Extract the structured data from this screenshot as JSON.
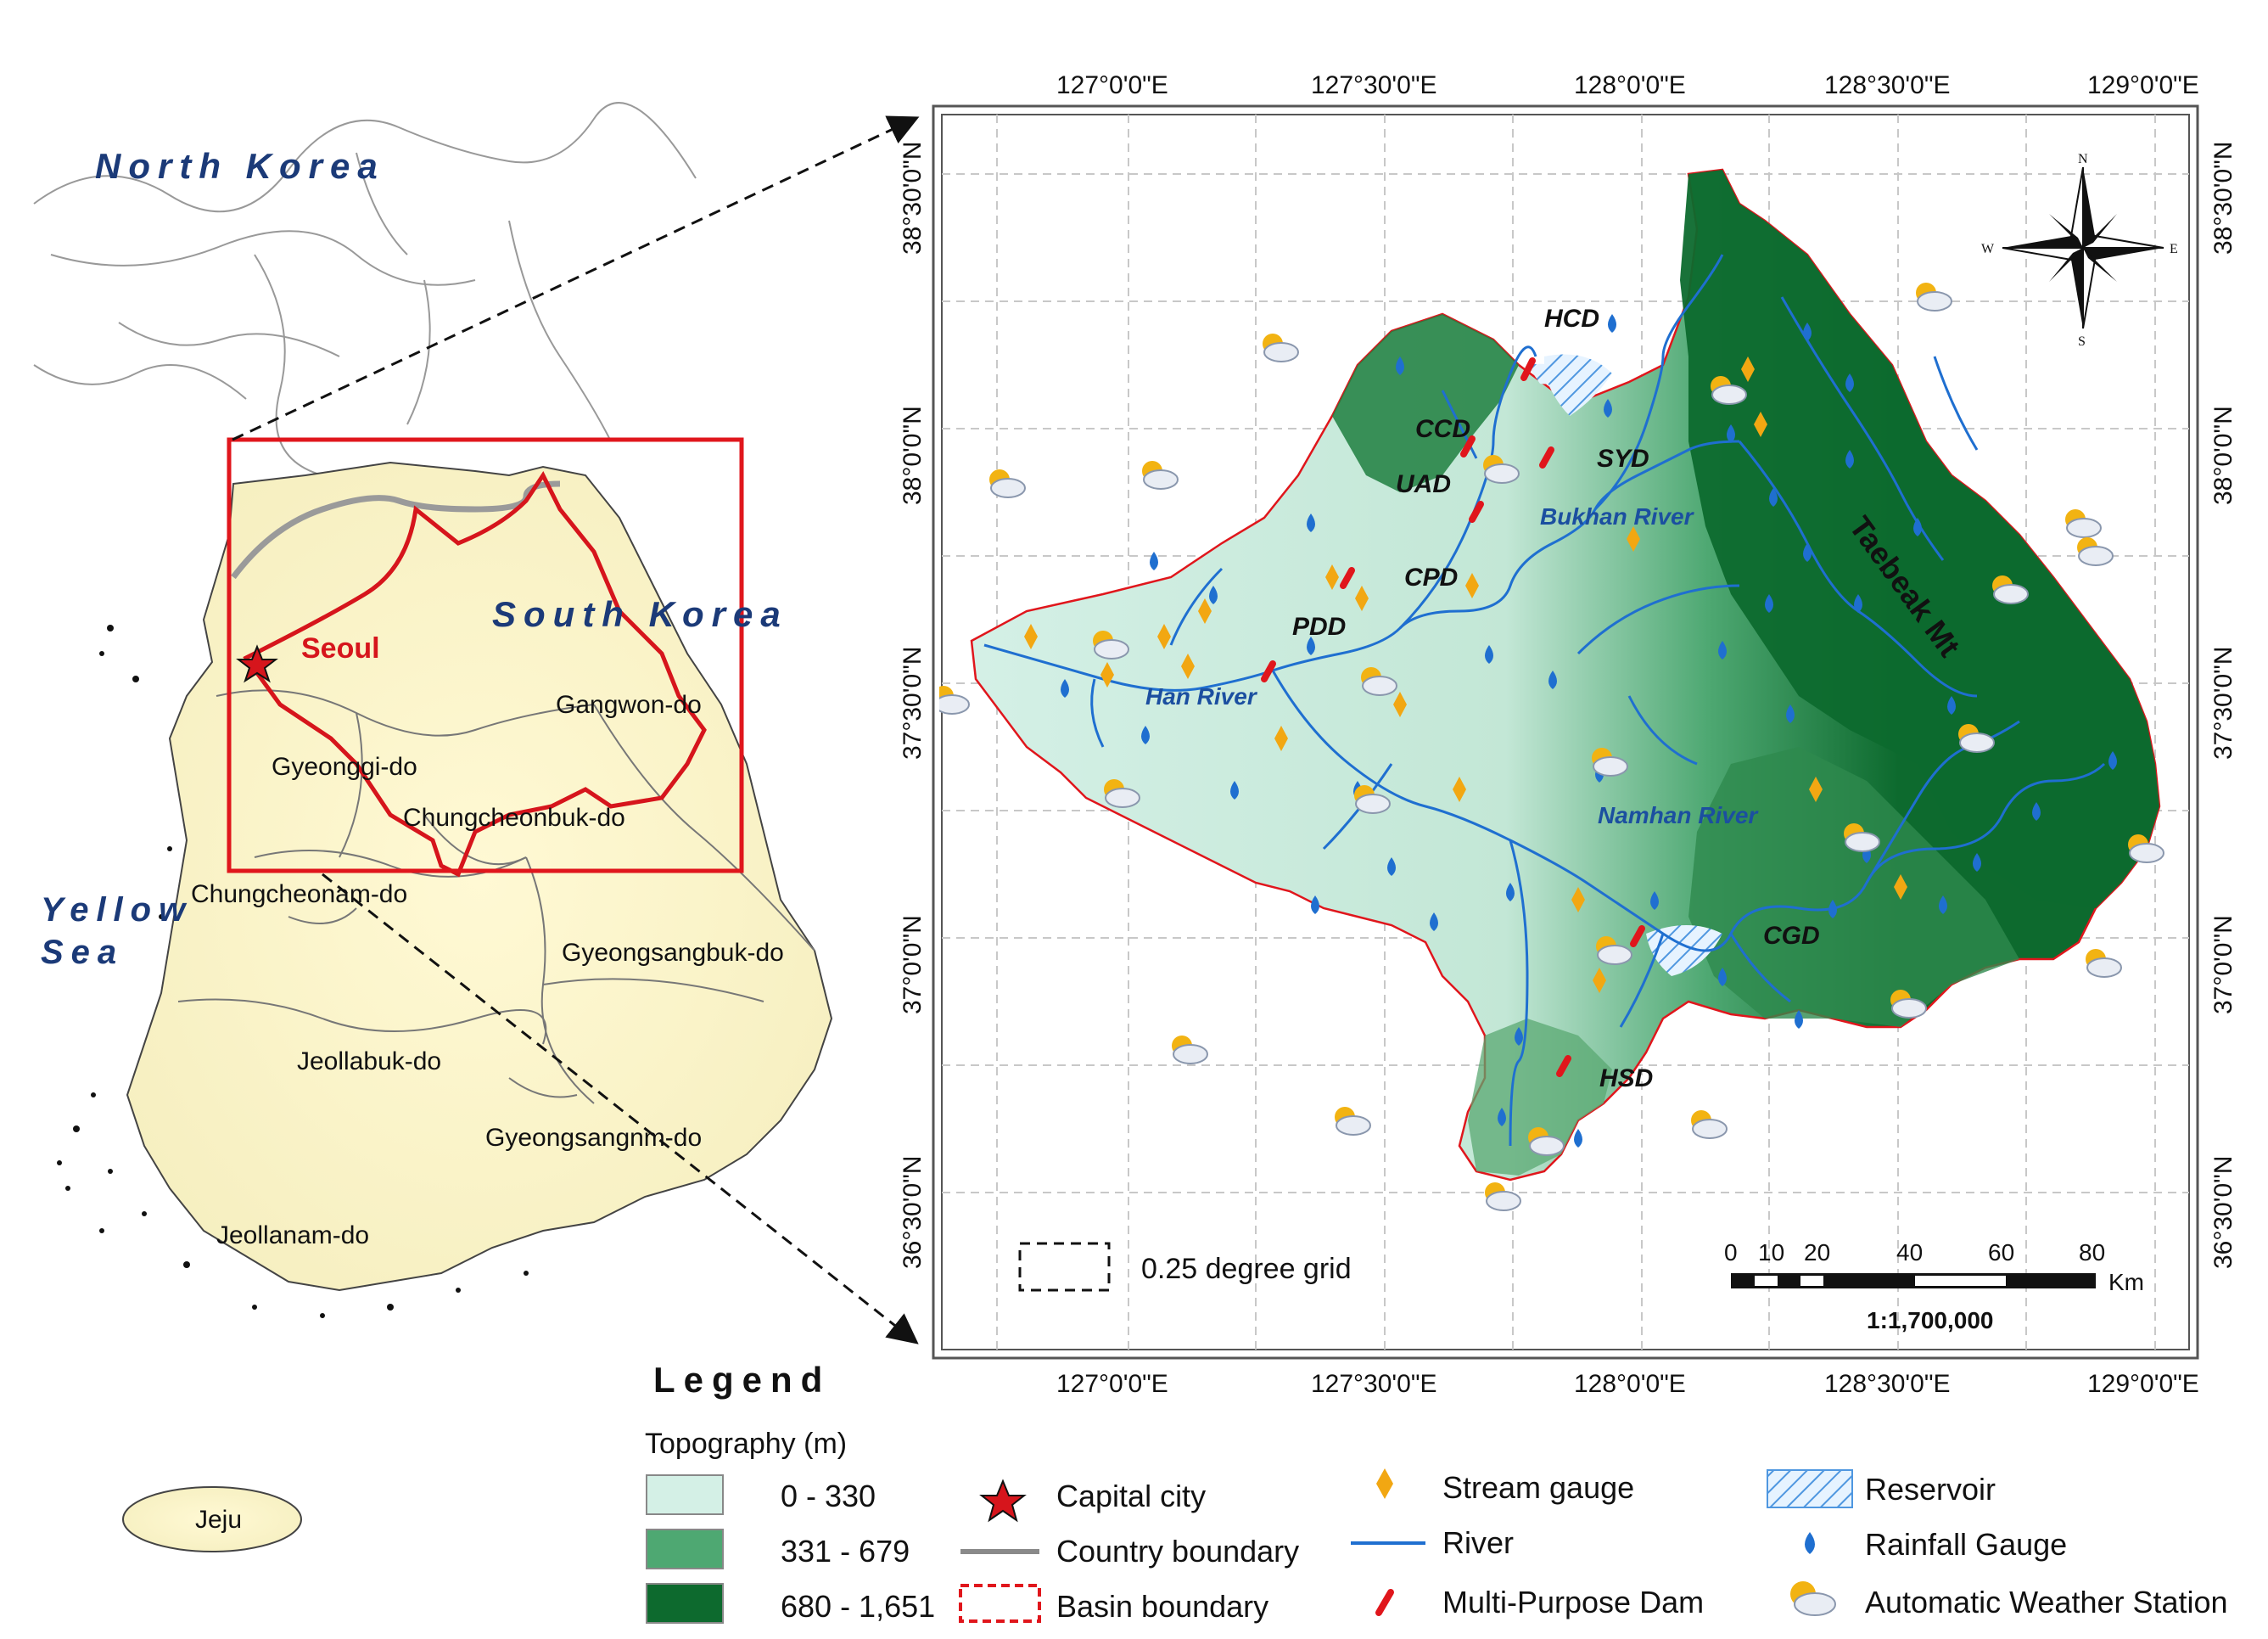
{
  "overview": {
    "countries": [
      "North Korea",
      "South Korea"
    ],
    "sea": [
      "Yellow",
      "Sea"
    ],
    "capital": "Seoul",
    "provinces": [
      "Gangwon-do",
      "Gyeonggi-do",
      "Chungcheonbuk-do",
      "Chungcheonam-do",
      "Gyeongsangbuk-do",
      "Jeollabuk-do",
      "Gyeongsangnm-do",
      "Jeollanam-do",
      "Jeju"
    ]
  },
  "detail": {
    "lon_labels": [
      "127°0'0\"E",
      "127°30'0\"E",
      "128°0'0\"E",
      "128°30'0\"E",
      "129°0'0\"E"
    ],
    "lat_labels": [
      "38°30'0\"N",
      "38°0'0\"N",
      "37°30'0\"N",
      "37°0'0\"N",
      "36°30'0\"N"
    ],
    "dams": [
      "HCD",
      "CCD",
      "SYD",
      "UAD",
      "CPD",
      "PDD",
      "CGD",
      "HSD"
    ],
    "rivers": [
      "Bukhan River",
      "Han River",
      "Namhan River"
    ],
    "mountain": "Taebeak Mt",
    "grid_note": "0.25 degree grid",
    "scale_ticks": [
      "0",
      "10",
      "20",
      "40",
      "60",
      "80"
    ],
    "scale_unit": "Km",
    "scale_ratio": "1:1,700,000",
    "compass": [
      "N",
      "S",
      "W",
      "E"
    ]
  },
  "legend": {
    "title": "Legend",
    "topo_title": "Topography (m)",
    "topo": [
      {
        "label": "0 - 330",
        "color": "#d4f0e6"
      },
      {
        "label": "331 - 679",
        "color": "#4ea872"
      },
      {
        "label": "680 - 1,651",
        "color": "#0d6a2e"
      }
    ],
    "col2": [
      "Capital city",
      "Country boundary",
      "Basin boundary"
    ],
    "col3": [
      "Stream gauge",
      "River",
      "Multi-Purpose Dam"
    ],
    "col4": [
      "Reservoir",
      "Rainfall Gauge",
      "Automatic Weather Station"
    ]
  },
  "colors": {
    "land": "#fbf5cf",
    "boundary_red": "#e0161c",
    "river_blue": "#1f6fd0",
    "stream_gauge": "#f2a712",
    "nav_text": "#1b3a78"
  }
}
